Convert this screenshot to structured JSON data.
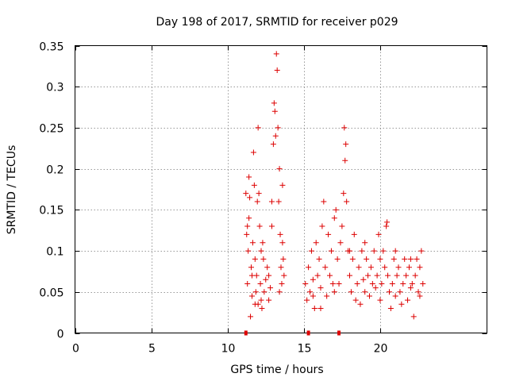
{
  "chart_data": {
    "type": "scatter",
    "title": "Day 198 of 2017, SRMTID for receiver p029",
    "xlabel": "GPS time / hours",
    "ylabel": "SRMTID / TECUs",
    "xlim": [
      0,
      27
    ],
    "ylim": [
      0,
      0.35
    ],
    "x_ticks": [
      0,
      5,
      10,
      15,
      20
    ],
    "x_tick_labels": [
      "0",
      "5",
      "10",
      "15",
      "20"
    ],
    "y_ticks": [
      0,
      0.05,
      0.1,
      0.15,
      0.2,
      0.25,
      0.3,
      0.35
    ],
    "y_tick_labels": [
      "0",
      "0.05",
      "0.1",
      "0.15",
      "0.2",
      "0.25",
      "0.3",
      "0.35"
    ],
    "grid": true,
    "marker": "+",
    "color": "#dd0000",
    "axis_markers": [
      11.2,
      15.3,
      17.3
    ],
    "series": [
      {
        "name": "SRMTID",
        "points": [
          [
            11.2,
            0.17
          ],
          [
            11.25,
            0.12
          ],
          [
            11.3,
            0.13
          ],
          [
            11.35,
            0.1
          ],
          [
            11.4,
            0.19
          ],
          [
            11.45,
            0.165
          ],
          [
            11.5,
            0.02
          ],
          [
            11.55,
            0.08
          ],
          [
            11.6,
            0.07
          ],
          [
            11.65,
            0.11
          ],
          [
            11.7,
            0.22
          ],
          [
            11.75,
            0.18
          ],
          [
            11.8,
            0.09
          ],
          [
            11.85,
            0.05
          ],
          [
            11.9,
            0.07
          ],
          [
            11.95,
            0.16
          ],
          [
            12.0,
            0.25
          ],
          [
            12.05,
            0.17
          ],
          [
            12.1,
            0.13
          ],
          [
            12.15,
            0.06
          ],
          [
            12.2,
            0.04
          ],
          [
            12.25,
            0.03
          ],
          [
            12.3,
            0.11
          ],
          [
            12.35,
            0.09
          ],
          [
            12.4,
            0.05
          ],
          [
            12.5,
            0.065
          ],
          [
            12.6,
            0.08
          ],
          [
            12.7,
            0.04
          ],
          [
            12.8,
            0.055
          ],
          [
            12.9,
            0.13
          ],
          [
            13.0,
            0.23
          ],
          [
            13.05,
            0.28
          ],
          [
            13.1,
            0.27
          ],
          [
            13.15,
            0.24
          ],
          [
            13.2,
            0.34
          ],
          [
            13.25,
            0.32
          ],
          [
            13.3,
            0.25
          ],
          [
            13.35,
            0.16
          ],
          [
            13.4,
            0.2
          ],
          [
            13.45,
            0.12
          ],
          [
            13.5,
            0.08
          ],
          [
            13.55,
            0.06
          ],
          [
            13.6,
            0.18
          ],
          [
            13.65,
            0.09
          ],
          [
            13.7,
            0.07
          ],
          [
            11.3,
            0.06
          ],
          [
            11.6,
            0.045
          ],
          [
            12.0,
            0.035
          ],
          [
            12.7,
            0.07
          ],
          [
            13.4,
            0.05
          ],
          [
            11.4,
            0.14
          ],
          [
            12.2,
            0.1
          ],
          [
            12.9,
            0.16
          ],
          [
            13.6,
            0.11
          ],
          [
            11.8,
            0.035
          ],
          [
            15.1,
            0.06
          ],
          [
            15.2,
            0.04
          ],
          [
            15.3,
            0.08
          ],
          [
            15.4,
            0.05
          ],
          [
            15.5,
            0.1
          ],
          [
            15.6,
            0.065
          ],
          [
            15.7,
            0.03
          ],
          [
            15.8,
            0.11
          ],
          [
            15.9,
            0.07
          ],
          [
            16.0,
            0.09
          ],
          [
            16.1,
            0.055
          ],
          [
            16.2,
            0.13
          ],
          [
            16.3,
            0.16
          ],
          [
            16.4,
            0.08
          ],
          [
            16.5,
            0.045
          ],
          [
            16.6,
            0.12
          ],
          [
            16.7,
            0.07
          ],
          [
            16.8,
            0.1
          ],
          [
            16.9,
            0.06
          ],
          [
            17.0,
            0.14
          ],
          [
            17.1,
            0.15
          ],
          [
            17.2,
            0.09
          ],
          [
            17.3,
            0.06
          ],
          [
            17.4,
            0.11
          ],
          [
            17.5,
            0.13
          ],
          [
            17.6,
            0.17
          ],
          [
            17.65,
            0.25
          ],
          [
            17.7,
            0.21
          ],
          [
            17.75,
            0.23
          ],
          [
            17.8,
            0.16
          ],
          [
            17.9,
            0.1
          ],
          [
            18.0,
            0.07
          ],
          [
            18.1,
            0.05
          ],
          [
            18.2,
            0.09
          ],
          [
            18.3,
            0.12
          ],
          [
            18.4,
            0.04
          ],
          [
            18.5,
            0.06
          ],
          [
            18.6,
            0.08
          ],
          [
            18.7,
            0.035
          ],
          [
            18.8,
            0.1
          ],
          [
            18.9,
            0.065
          ],
          [
            19.0,
            0.05
          ],
          [
            19.1,
            0.09
          ],
          [
            19.2,
            0.07
          ],
          [
            19.3,
            0.045
          ],
          [
            19.4,
            0.08
          ],
          [
            19.5,
            0.06
          ],
          [
            19.6,
            0.1
          ],
          [
            19.7,
            0.055
          ],
          [
            19.8,
            0.07
          ],
          [
            19.9,
            0.12
          ],
          [
            20.0,
            0.09
          ],
          [
            20.1,
            0.06
          ],
          [
            20.2,
            0.1
          ],
          [
            20.3,
            0.08
          ],
          [
            20.4,
            0.13
          ],
          [
            20.45,
            0.135
          ],
          [
            20.5,
            0.07
          ],
          [
            20.6,
            0.05
          ],
          [
            20.7,
            0.03
          ],
          [
            20.8,
            0.06
          ],
          [
            20.9,
            0.09
          ],
          [
            21.0,
            0.045
          ],
          [
            21.1,
            0.07
          ],
          [
            21.2,
            0.08
          ],
          [
            21.3,
            0.05
          ],
          [
            21.4,
            0.035
          ],
          [
            21.5,
            0.06
          ],
          [
            21.6,
            0.09
          ],
          [
            21.7,
            0.07
          ],
          [
            21.8,
            0.04
          ],
          [
            21.9,
            0.08
          ],
          [
            22.0,
            0.055
          ],
          [
            22.1,
            0.06
          ],
          [
            22.2,
            0.02
          ],
          [
            22.3,
            0.07
          ],
          [
            22.4,
            0.09
          ],
          [
            22.5,
            0.05
          ],
          [
            22.6,
            0.08
          ],
          [
            22.7,
            0.1
          ],
          [
            22.8,
            0.06
          ],
          [
            15.6,
            0.045
          ],
          [
            16.1,
            0.03
          ],
          [
            17.0,
            0.05
          ],
          [
            18.0,
            0.1
          ],
          [
            19.0,
            0.11
          ],
          [
            20.0,
            0.04
          ],
          [
            21.0,
            0.1
          ],
          [
            22.0,
            0.09
          ],
          [
            22.6,
            0.045
          ]
        ]
      }
    ]
  }
}
